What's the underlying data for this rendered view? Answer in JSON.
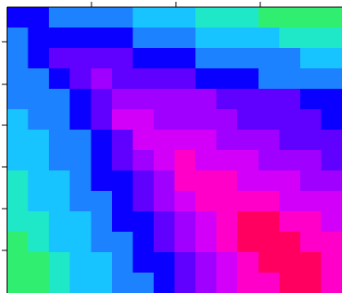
{
  "chart_data": {
    "type": "heatmap",
    "colors": [
      "#30ef70",
      "#1ee8c8",
      "#18c4ff",
      "#1c82ff",
      "#0a00ff",
      "#6000ff",
      "#a000ff",
      "#d200f8",
      "#ff00c8",
      "#ff0060"
    ],
    "z": [
      [
        4,
        4,
        3,
        3,
        3,
        3,
        2,
        2,
        2,
        1,
        1,
        1,
        0,
        0,
        0,
        0
      ],
      [
        3,
        4,
        4,
        4,
        4,
        4,
        3,
        3,
        3,
        2,
        2,
        2,
        2,
        1,
        1,
        1
      ],
      [
        3,
        4,
        5,
        5,
        5,
        5,
        4,
        4,
        4,
        3,
        3,
        3,
        3,
        3,
        2,
        2
      ],
      [
        3,
        3,
        4,
        5,
        6,
        5,
        5,
        5,
        5,
        4,
        4,
        4,
        3,
        3,
        3,
        3
      ],
      [
        3,
        3,
        3,
        4,
        5,
        6,
        6,
        6,
        6,
        6,
        5,
        5,
        5,
        5,
        4,
        4
      ],
      [
        2,
        3,
        3,
        4,
        5,
        7,
        7,
        6,
        6,
        6,
        6,
        5,
        5,
        5,
        5,
        4
      ],
      [
        2,
        2,
        3,
        3,
        4,
        5,
        7,
        7,
        7,
        7,
        6,
        6,
        6,
        5,
        5,
        5
      ],
      [
        2,
        2,
        3,
        3,
        4,
        5,
        6,
        7,
        8,
        7,
        7,
        7,
        6,
        6,
        6,
        5
      ],
      [
        1,
        2,
        2,
        3,
        4,
        4,
        5,
        6,
        8,
        8,
        8,
        7,
        7,
        7,
        6,
        6
      ],
      [
        1,
        2,
        2,
        3,
        3,
        4,
        5,
        6,
        7,
        8,
        8,
        8,
        8,
        7,
        7,
        7
      ],
      [
        1,
        1,
        2,
        2,
        3,
        4,
        4,
        5,
        6,
        7,
        8,
        9,
        9,
        8,
        8,
        7
      ],
      [
        0,
        1,
        2,
        2,
        3,
        3,
        4,
        5,
        6,
        7,
        8,
        9,
        9,
        9,
        8,
        8
      ],
      [
        0,
        0,
        1,
        2,
        2,
        3,
        4,
        4,
        5,
        6,
        7,
        8,
        9,
        9,
        9,
        8
      ],
      [
        0,
        0,
        1,
        2,
        2,
        3,
        3,
        4,
        5,
        6,
        7,
        8,
        8,
        9,
        9,
        8
      ]
    ]
  }
}
